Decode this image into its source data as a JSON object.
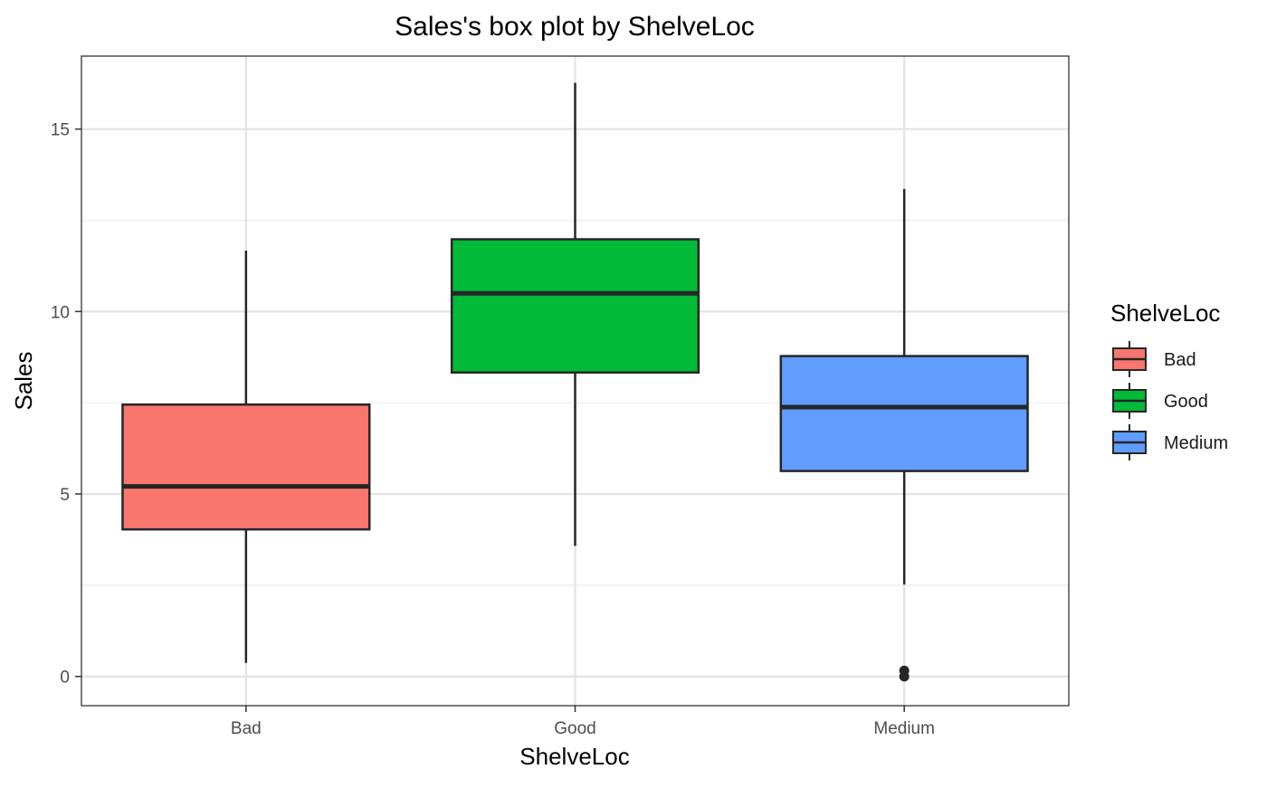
{
  "chart_data": {
    "type": "box",
    "title": "Sales's box plot by ShelveLoc",
    "xlabel": "ShelveLoc",
    "ylabel": "Sales",
    "ylim": [
      -0.8,
      17.0
    ],
    "yticks": [
      0,
      5,
      10,
      15
    ],
    "yminor": [
      2.5,
      7.5,
      12.5
    ],
    "grid": true,
    "categories": [
      "Bad",
      "Good",
      "Medium"
    ],
    "boxes": [
      {
        "category": "Bad",
        "whisker_low": 0.37,
        "q1": 4.03,
        "median": 5.21,
        "q3": 7.45,
        "whisker_high": 11.67,
        "outliers": [],
        "color": "#F8766D"
      },
      {
        "category": "Good",
        "whisker_low": 3.58,
        "q1": 8.33,
        "median": 10.5,
        "q3": 11.98,
        "whisker_high": 16.27,
        "outliers": [],
        "color": "#00BA38"
      },
      {
        "category": "Medium",
        "whisker_low": 2.52,
        "q1": 5.63,
        "median": 7.38,
        "q3": 8.78,
        "whisker_high": 13.36,
        "outliers": [
          0.16,
          0.0
        ],
        "color": "#619CFF"
      }
    ],
    "legend": {
      "title": "ShelveLoc",
      "position": "right",
      "items": [
        {
          "label": "Bad",
          "color": "#F8766D"
        },
        {
          "label": "Good",
          "color": "#00BA38"
        },
        {
          "label": "Medium",
          "color": "#619CFF"
        }
      ]
    }
  }
}
